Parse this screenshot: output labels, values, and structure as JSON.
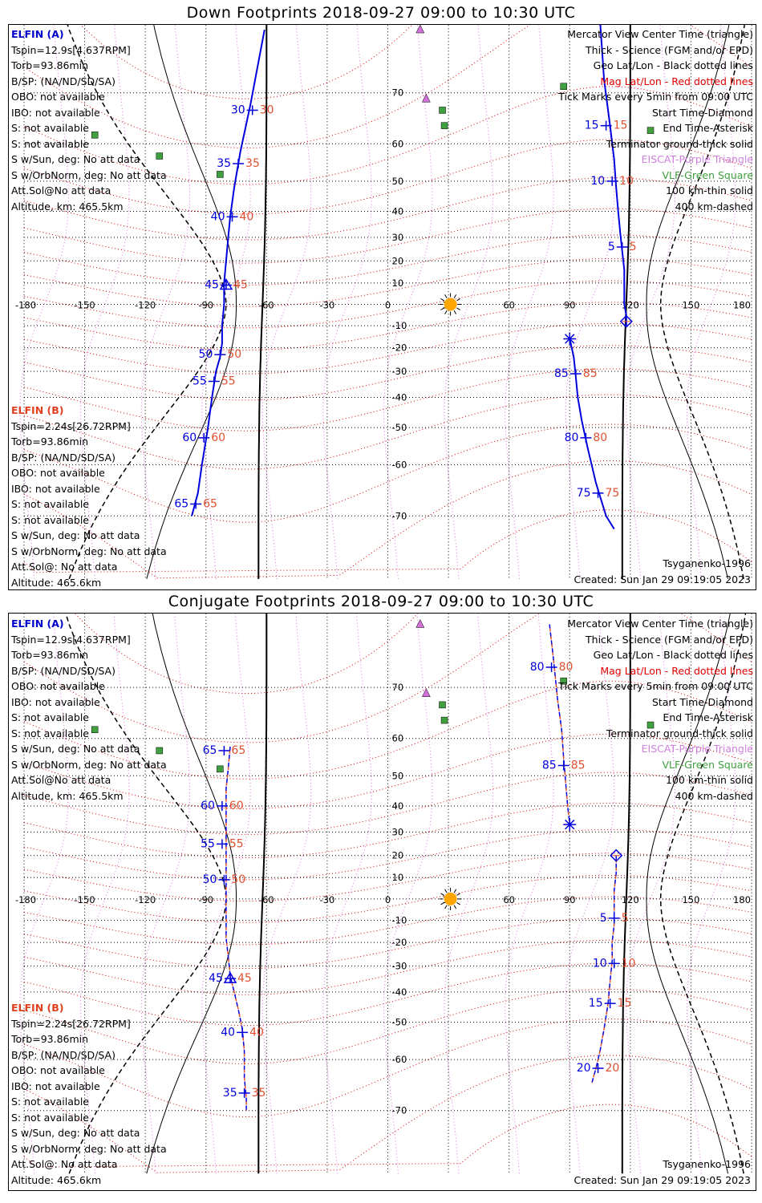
{
  "panels": [
    {
      "id": "down",
      "title": "Down Footprints 2018-09-27 09:00 to 10:30 UTC",
      "elfin_a": {
        "label": "ELFIN (A)",
        "lines": [
          "Tspin=12.9s[4.637RPM]",
          "Torb=93.86min",
          "B/SP: (NA/ND/SD/SA)",
          "OBO: not available",
          "IBO: not available",
          "S: not available",
          "S: not available",
          "S w/Sun, deg: No att data",
          "S w/OrbNorm, deg: No att data",
          "Att.Sol@No att data",
          "Altitude, km: 465.5km"
        ]
      },
      "elfin_b": {
        "label": "ELFIN (B)",
        "lines": [
          "Tspin=2.24s[26.72RPM]",
          "Torb=93.86min",
          "B/SP: (NA/ND/SD/SA)",
          "OBO: not available",
          "IBO: not available",
          "S: not available",
          "S: not available",
          "S w/Sun, deg: No att data",
          "S w/OrbNorm, deg: No att data",
          "Att.Sol@: No att data",
          "Altitude: 465.6km"
        ]
      },
      "legend": [
        {
          "text": "Mercator View Center Time (triangle)",
          "color": "black"
        },
        {
          "text": "Thick - Science (FGM and/or EPD)",
          "color": "black"
        },
        {
          "text": "Geo Lat/Lon - Black dotted lines",
          "color": "black"
        },
        {
          "text": "Mag Lat/Lon - Red dotted lines",
          "color": "red"
        },
        {
          "text": "Tick Marks every 5min from 09:00 UTC",
          "color": "black"
        },
        {
          "text": "Start Time-Diamond",
          "color": "black"
        },
        {
          "text": "End Time-Asterisk",
          "color": "black"
        },
        {
          "text": "Terminator ground-thick solid",
          "color": "black"
        },
        {
          "text": "EISCAT-Purple Triangle",
          "color": "purple"
        },
        {
          "text": "VLF-Green Square",
          "color": "green"
        },
        {
          "text": "100 km-thin solid",
          "color": "black"
        },
        {
          "text": "400 km-dashed",
          "color": "black"
        }
      ],
      "model": "Tsyganenko-1996",
      "created": "Created: Sun Jan 29 09:19:05 2023"
    },
    {
      "id": "conjugate",
      "title": "Conjugate Footprints 2018-09-27 09:00 to 10:30 UTC",
      "elfin_a": {
        "label": "ELFIN (A)",
        "lines": [
          "Tspin=12.9s[4.637RPM]",
          "Torb=93.86min",
          "B/SP: (NA/ND/SD/SA)",
          "OBO: not available",
          "IBO: not available",
          "S: not available",
          "S: not available",
          "S w/Sun, deg: No att data",
          "S w/OrbNorm, deg: No att data",
          "Att.Sol@No att data",
          "Altitude, km: 465.5km"
        ]
      },
      "elfin_b": {
        "label": "ELFIN (B)",
        "lines": [
          "Tspin=2.24s[26.72RPM]",
          "Torb=93.86min",
          "B/SP: (NA/ND/SD/SA)",
          "OBO: not available",
          "IBO: not available",
          "S: not available",
          "S: not available",
          "S w/Sun, deg: No att data",
          "S w/OrbNorm, deg: No att data",
          "Att.Sol@: No att data",
          "Altitude: 465.6km"
        ]
      },
      "legend": [
        {
          "text": "Mercator View Center Time (triangle)",
          "color": "black"
        },
        {
          "text": "Thick - Science (FGM and/or EPD)",
          "color": "black"
        },
        {
          "text": "Geo Lat/Lon - Black dotted lines",
          "color": "black"
        },
        {
          "text": "Mag Lat/Lon - Red dotted lines",
          "color": "red"
        },
        {
          "text": "Tick Marks every 5min from 09:00 UTC",
          "color": "black"
        },
        {
          "text": "Start Time-Diamond",
          "color": "black"
        },
        {
          "text": "End Time-Asterisk",
          "color": "black"
        },
        {
          "text": "Terminator ground-thick solid",
          "color": "black"
        },
        {
          "text": "EISCAT-Purple Triangle",
          "color": "purple"
        },
        {
          "text": "VLF-Green Square",
          "color": "green"
        },
        {
          "text": "100 km-thin solid",
          "color": "black"
        },
        {
          "text": "400 km-dashed",
          "color": "black"
        }
      ],
      "model": "Tsyganenko-1996",
      "created": "Created: Sun Jan 29 09:19:05 2023"
    }
  ],
  "map": {
    "lon_ticks": [
      -180,
      -150,
      -120,
      -90,
      -60,
      -30,
      0,
      30,
      60,
      90,
      120,
      150,
      180
    ],
    "lat_ticks": [
      -70,
      -60,
      -50,
      -40,
      -30,
      -20,
      -10,
      10,
      20,
      30,
      40,
      50,
      60,
      70
    ],
    "sun": {
      "lon": 31,
      "lat": 0
    },
    "eiscat": [
      {
        "lon": 16,
        "lat": 78
      },
      {
        "lon": 19,
        "lat": 69
      }
    ],
    "vlf": [
      {
        "lon": -145,
        "lat": 62
      },
      {
        "lon": -113,
        "lat": 57
      },
      {
        "lon": -83,
        "lat": 52
      },
      {
        "lon": 27,
        "lat": 67
      },
      {
        "lon": 28,
        "lat": 64
      },
      {
        "lon": 87,
        "lat": 71
      },
      {
        "lon": 130,
        "lat": 63
      }
    ],
    "colors": {
      "geo_grid": "#000000",
      "mag_lat": "#dd0000",
      "mag_lon": "#e070e0",
      "elfin_a": "#0000dd",
      "elfin_b": "#e05030",
      "vlf": "#40a040",
      "eiscat": "#d070d8",
      "sun": "#ffa500"
    }
  },
  "tracks": {
    "down": {
      "elfin_a": {
        "science": true,
        "segments": [
          {
            "points": [
              [
                -61,
                78
              ],
              [
                -68,
                68
              ],
              [
                -73,
                58
              ],
              [
                -76,
                48
              ],
              [
                -78,
                38
              ],
              [
                -79,
                30
              ],
              [
                -80,
                20
              ],
              [
                -81,
                10
              ],
              [
                -81,
                0
              ],
              [
                -82,
                -10
              ],
              [
                -82,
                -18
              ],
              [
                -83,
                -24
              ],
              [
                -85,
                -30
              ],
              [
                -87,
                -40
              ],
              [
                -89,
                -50
              ],
              [
                -92,
                -60
              ],
              [
                -94,
                -66
              ],
              [
                -97,
                -70
              ]
            ]
          },
          {
            "points": [
              [
                105,
                79
              ],
              [
                107,
                72
              ],
              [
                110,
                64
              ],
              [
                112,
                56
              ],
              [
                113,
                48
              ],
              [
                114,
                40
              ],
              [
                115,
                32
              ],
              [
                116,
                24
              ],
              [
                117,
                16
              ],
              [
                117,
                8
              ],
              [
                117,
                0
              ],
              [
                118,
                -5
              ],
              [
                118,
                -10
              ]
            ]
          },
          {
            "points": [
              [
                90,
                -16
              ],
              [
                92,
                -24
              ],
              [
                93,
                -32
              ],
              [
                94,
                -40
              ],
              [
                96,
                -48
              ],
              [
                99,
                -56
              ],
              [
                103,
                -64
              ],
              [
                108,
                -70
              ],
              [
                112,
                -72
              ]
            ]
          }
        ],
        "ticks": [
          {
            "label": "30",
            "lon": -67,
            "lat": 67
          },
          {
            "label": "35",
            "lon": -74,
            "lat": 55
          },
          {
            "label": "40",
            "lon": -77,
            "lat": 38
          },
          {
            "label": "45",
            "lon": -80,
            "lat": 9
          },
          {
            "label": "50",
            "lon": -83,
            "lat": -23
          },
          {
            "label": "55",
            "lon": -86,
            "lat": -34
          },
          {
            "label": "60",
            "lon": -91,
            "lat": -53
          },
          {
            "label": "65",
            "lon": -95,
            "lat": -68
          },
          {
            "label": "15",
            "lon": 108,
            "lat": 64
          },
          {
            "label": "10",
            "lon": 111,
            "lat": 50
          },
          {
            "label": "5",
            "lon": 116,
            "lat": 26
          },
          {
            "label": "85",
            "lon": 93,
            "lat": -31
          },
          {
            "label": "80",
            "lon": 98,
            "lat": -53
          },
          {
            "label": "75",
            "lon": 104,
            "lat": -66
          }
        ],
        "start": {
          "lon": 118,
          "lat": -8
        },
        "end": {
          "lon": 90,
          "lat": -16
        },
        "center": {
          "lon": -80,
          "lat": 9
        }
      }
    },
    "conjugate": {
      "elfin_a": {
        "science": false,
        "segments": [
          {
            "points": [
              [
                -78,
                58
              ],
              [
                -79,
                52
              ],
              [
                -80,
                46
              ],
              [
                -80,
                38
              ],
              [
                -80,
                30
              ],
              [
                -80,
                22
              ],
              [
                -80,
                14
              ],
              [
                -80,
                6
              ],
              [
                -80,
                -2
              ],
              [
                -80,
                -10
              ],
              [
                -80,
                -18
              ],
              [
                -79,
                -26
              ],
              [
                -78,
                -34
              ],
              [
                -76,
                -40
              ],
              [
                -74,
                -46
              ],
              [
                -72,
                -52
              ],
              [
                -71,
                -58
              ],
              [
                -71,
                -64
              ],
              [
                -70,
                -68
              ],
              [
                -70,
                -70
              ]
            ]
          },
          {
            "points": [
              [
                80,
                78
              ],
              [
                82,
                74
              ],
              [
                84,
                68
              ],
              [
                86,
                62
              ],
              [
                87,
                55
              ],
              [
                88,
                48
              ],
              [
                89,
                40
              ],
              [
                90,
                33
              ]
            ]
          },
          {
            "points": [
              [
                113,
                20
              ],
              [
                113,
                12
              ],
              [
                112,
                4
              ],
              [
                112,
                -4
              ],
              [
                112,
                -12
              ],
              [
                111,
                -20
              ],
              [
                111,
                -28
              ],
              [
                110,
                -36
              ],
              [
                109,
                -44
              ],
              [
                107,
                -52
              ],
              [
                105,
                -58
              ],
              [
                103,
                -62
              ],
              [
                101,
                -65
              ]
            ]
          }
        ],
        "ticks": [
          {
            "label": "65",
            "lon": -81,
            "lat": 57
          },
          {
            "label": "60",
            "lon": -82,
            "lat": 40
          },
          {
            "label": "55",
            "lon": -82,
            "lat": 25
          },
          {
            "label": "50",
            "lon": -81,
            "lat": 9
          },
          {
            "label": "45",
            "lon": -78,
            "lat": -35
          },
          {
            "label": "40",
            "lon": -72,
            "lat": -53
          },
          {
            "label": "35",
            "lon": -71,
            "lat": -67
          },
          {
            "label": "80",
            "lon": 81,
            "lat": 73
          },
          {
            "label": "85",
            "lon": 87,
            "lat": 53
          },
          {
            "label": "5",
            "lon": 112,
            "lat": -9
          },
          {
            "label": "10",
            "lon": 112,
            "lat": -29
          },
          {
            "label": "15",
            "lon": 110,
            "lat": -44
          },
          {
            "label": "20",
            "lon": 104,
            "lat": -62
          }
        ],
        "start": {
          "lon": 113,
          "lat": 20
        },
        "end": {
          "lon": 90,
          "lat": 33
        },
        "center": {
          "lon": -78,
          "lat": -35
        }
      }
    }
  }
}
